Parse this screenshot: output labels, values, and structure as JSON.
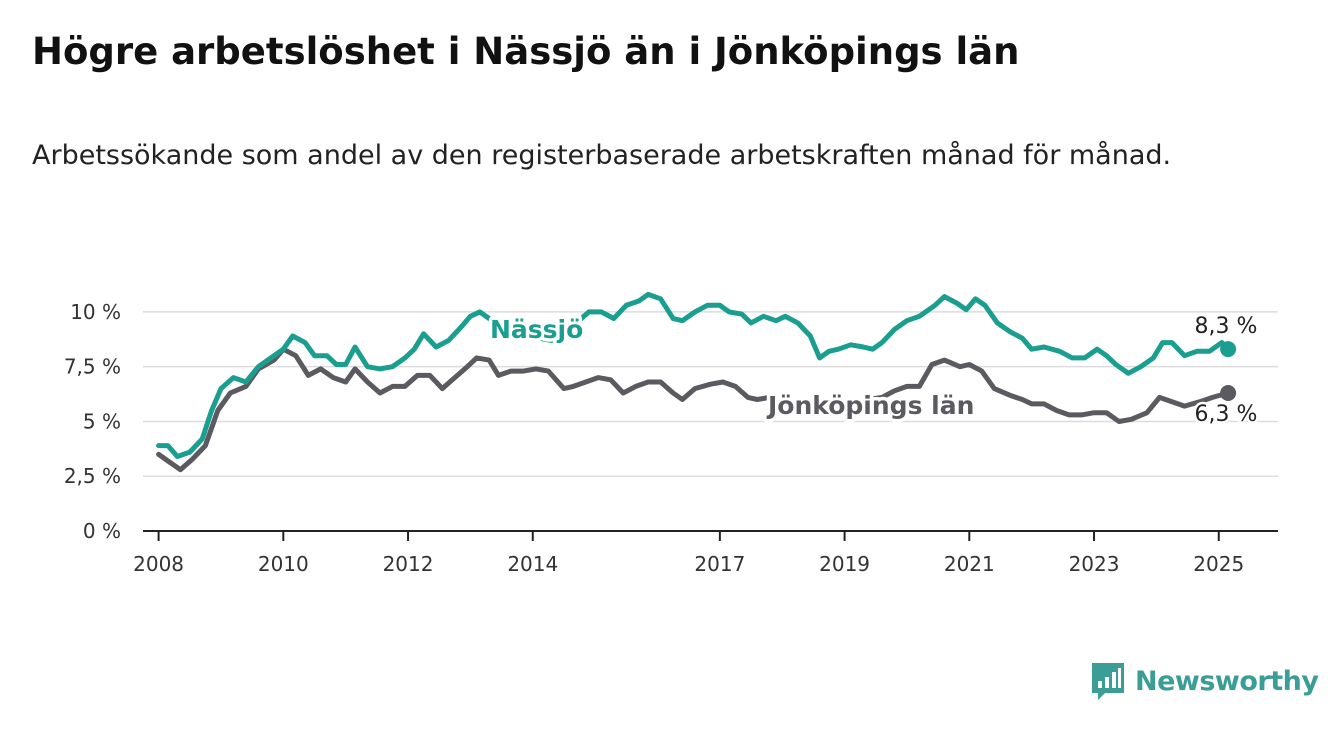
{
  "header": {
    "title": "Högre arbetslöshet i Nässjö än i Jönköpings län",
    "subtitle": "Arbetssökande som andel av den registerbaserade arbetskraften månad för månad."
  },
  "brand": {
    "name": "Newsworthy",
    "icon": "newsworthy-logo-icon",
    "color": "#3a9e96"
  },
  "chart_data": {
    "type": "line",
    "title": "Högre arbetslöshet i Nässjö än i Jönköpings län",
    "subtitle": "Arbetssökande som andel av den registerbaserade arbetskraften månad för månad.",
    "xlabel": "",
    "ylabel": "",
    "x_range": [
      2007.75,
      2025.95
    ],
    "ylim": [
      0,
      11
    ],
    "y_ticks": [
      0,
      2.5,
      5,
      7.5,
      10
    ],
    "y_tick_labels": [
      "0 %",
      "2,5 %",
      "5 %",
      "7,5 %",
      "10 %"
    ],
    "x_ticks": [
      2008,
      2010,
      2012,
      2014,
      2017,
      2019,
      2021,
      2023,
      2025
    ],
    "x_tick_labels": [
      "2008",
      "2010",
      "2012",
      "2014",
      "2017",
      "2019",
      "2021",
      "2023",
      "2025"
    ],
    "grid": "horizontal",
    "series": [
      {
        "name": "Nässjö",
        "color": "#1a9e8f",
        "end_label": "8,3 %",
        "points": [
          [
            2008.0,
            3.9
          ],
          [
            2008.15,
            3.9
          ],
          [
            2008.3,
            3.4
          ],
          [
            2008.5,
            3.6
          ],
          [
            2008.7,
            4.2
          ],
          [
            2008.85,
            5.5
          ],
          [
            2009.0,
            6.5
          ],
          [
            2009.2,
            7.0
          ],
          [
            2009.4,
            6.8
          ],
          [
            2009.6,
            7.5
          ],
          [
            2009.85,
            8.0
          ],
          [
            2010.0,
            8.3
          ],
          [
            2010.15,
            8.9
          ],
          [
            2010.35,
            8.6
          ],
          [
            2010.5,
            8.0
          ],
          [
            2010.7,
            8.0
          ],
          [
            2010.85,
            7.6
          ],
          [
            2011.0,
            7.6
          ],
          [
            2011.15,
            8.4
          ],
          [
            2011.35,
            7.5
          ],
          [
            2011.55,
            7.4
          ],
          [
            2011.75,
            7.5
          ],
          [
            2011.95,
            7.9
          ],
          [
            2012.1,
            8.3
          ],
          [
            2012.25,
            9.0
          ],
          [
            2012.45,
            8.4
          ],
          [
            2012.65,
            8.7
          ],
          [
            2012.85,
            9.3
          ],
          [
            2013.0,
            9.8
          ],
          [
            2013.15,
            10.0
          ],
          [
            2013.35,
            9.6
          ],
          [
            2013.55,
            8.9
          ],
          [
            2013.75,
            9.3
          ],
          [
            2013.9,
            9.1
          ],
          [
            2014.1,
            8.8
          ],
          [
            2014.3,
            8.7
          ],
          [
            2014.5,
            9.1
          ],
          [
            2014.7,
            9.5
          ],
          [
            2014.9,
            10.0
          ],
          [
            2015.1,
            10.0
          ],
          [
            2015.3,
            9.7
          ],
          [
            2015.5,
            10.3
          ],
          [
            2015.7,
            10.5
          ],
          [
            2015.85,
            10.8
          ],
          [
            2016.05,
            10.6
          ],
          [
            2016.25,
            9.7
          ],
          [
            2016.4,
            9.6
          ],
          [
            2016.6,
            10.0
          ],
          [
            2016.8,
            10.3
          ],
          [
            2017.0,
            10.3
          ],
          [
            2017.15,
            10.0
          ],
          [
            2017.35,
            9.9
          ],
          [
            2017.5,
            9.5
          ],
          [
            2017.7,
            9.8
          ],
          [
            2017.9,
            9.6
          ],
          [
            2018.05,
            9.8
          ],
          [
            2018.25,
            9.5
          ],
          [
            2018.45,
            8.9
          ],
          [
            2018.6,
            7.9
          ],
          [
            2018.75,
            8.2
          ],
          [
            2018.9,
            8.3
          ],
          [
            2019.1,
            8.5
          ],
          [
            2019.3,
            8.4
          ],
          [
            2019.45,
            8.3
          ],
          [
            2019.6,
            8.6
          ],
          [
            2019.8,
            9.2
          ],
          [
            2020.0,
            9.6
          ],
          [
            2020.2,
            9.8
          ],
          [
            2020.45,
            10.3
          ],
          [
            2020.6,
            10.7
          ],
          [
            2020.8,
            10.4
          ],
          [
            2020.95,
            10.1
          ],
          [
            2021.1,
            10.6
          ],
          [
            2021.25,
            10.3
          ],
          [
            2021.45,
            9.5
          ],
          [
            2021.65,
            9.1
          ],
          [
            2021.85,
            8.8
          ],
          [
            2022.0,
            8.3
          ],
          [
            2022.2,
            8.4
          ],
          [
            2022.45,
            8.2
          ],
          [
            2022.65,
            7.9
          ],
          [
            2022.85,
            7.9
          ],
          [
            2023.05,
            8.3
          ],
          [
            2023.2,
            8.0
          ],
          [
            2023.35,
            7.6
          ],
          [
            2023.55,
            7.2
          ],
          [
            2023.75,
            7.5
          ],
          [
            2023.95,
            7.9
          ],
          [
            2024.1,
            8.6
          ],
          [
            2024.25,
            8.6
          ],
          [
            2024.45,
            8.0
          ],
          [
            2024.65,
            8.2
          ],
          [
            2024.85,
            8.2
          ],
          [
            2025.05,
            8.6
          ],
          [
            2025.15,
            8.3
          ]
        ]
      },
      {
        "name": "Jönköpings län",
        "color": "#5a5a60",
        "end_label": "6,3 %",
        "points": [
          [
            2008.0,
            3.5
          ],
          [
            2008.15,
            3.2
          ],
          [
            2008.35,
            2.8
          ],
          [
            2008.55,
            3.3
          ],
          [
            2008.75,
            3.9
          ],
          [
            2008.95,
            5.5
          ],
          [
            2009.15,
            6.3
          ],
          [
            2009.4,
            6.6
          ],
          [
            2009.6,
            7.4
          ],
          [
            2009.85,
            7.8
          ],
          [
            2010.0,
            8.3
          ],
          [
            2010.2,
            8.0
          ],
          [
            2010.4,
            7.1
          ],
          [
            2010.6,
            7.4
          ],
          [
            2010.8,
            7.0
          ],
          [
            2011.0,
            6.8
          ],
          [
            2011.15,
            7.4
          ],
          [
            2011.35,
            6.8
          ],
          [
            2011.55,
            6.3
          ],
          [
            2011.75,
            6.6
          ],
          [
            2011.95,
            6.6
          ],
          [
            2012.15,
            7.1
          ],
          [
            2012.35,
            7.1
          ],
          [
            2012.55,
            6.5
          ],
          [
            2012.75,
            7.0
          ],
          [
            2012.95,
            7.5
          ],
          [
            2013.1,
            7.9
          ],
          [
            2013.3,
            7.8
          ],
          [
            2013.45,
            7.1
          ],
          [
            2013.65,
            7.3
          ],
          [
            2013.85,
            7.3
          ],
          [
            2014.05,
            7.4
          ],
          [
            2014.25,
            7.3
          ],
          [
            2014.5,
            6.5
          ],
          [
            2014.65,
            6.6
          ],
          [
            2014.85,
            6.8
          ],
          [
            2015.05,
            7.0
          ],
          [
            2015.25,
            6.9
          ],
          [
            2015.45,
            6.3
          ],
          [
            2015.65,
            6.6
          ],
          [
            2015.85,
            6.8
          ],
          [
            2016.05,
            6.8
          ],
          [
            2016.25,
            6.3
          ],
          [
            2016.4,
            6.0
          ],
          [
            2016.6,
            6.5
          ],
          [
            2016.85,
            6.7
          ],
          [
            2017.05,
            6.8
          ],
          [
            2017.25,
            6.6
          ],
          [
            2017.45,
            6.1
          ],
          [
            2017.6,
            6.0
          ],
          [
            2017.8,
            6.1
          ],
          [
            2018.0,
            5.7
          ],
          [
            2018.2,
            5.8
          ],
          [
            2018.4,
            5.6
          ],
          [
            2018.6,
            5.5
          ],
          [
            2018.8,
            5.6
          ],
          [
            2019.0,
            5.6
          ],
          [
            2019.2,
            5.8
          ],
          [
            2019.4,
            6.0
          ],
          [
            2019.6,
            6.1
          ],
          [
            2019.8,
            6.4
          ],
          [
            2020.0,
            6.6
          ],
          [
            2020.2,
            6.6
          ],
          [
            2020.4,
            7.6
          ],
          [
            2020.6,
            7.8
          ],
          [
            2020.85,
            7.5
          ],
          [
            2021.0,
            7.6
          ],
          [
            2021.2,
            7.3
          ],
          [
            2021.4,
            6.5
          ],
          [
            2021.65,
            6.2
          ],
          [
            2021.85,
            6.0
          ],
          [
            2022.0,
            5.8
          ],
          [
            2022.2,
            5.8
          ],
          [
            2022.4,
            5.5
          ],
          [
            2022.6,
            5.3
          ],
          [
            2022.8,
            5.3
          ],
          [
            2023.0,
            5.4
          ],
          [
            2023.2,
            5.4
          ],
          [
            2023.4,
            5.0
          ],
          [
            2023.6,
            5.1
          ],
          [
            2023.85,
            5.4
          ],
          [
            2024.05,
            6.1
          ],
          [
            2024.25,
            5.9
          ],
          [
            2024.45,
            5.7
          ],
          [
            2024.7,
            5.9
          ],
          [
            2024.9,
            6.1
          ],
          [
            2025.15,
            6.3
          ]
        ]
      }
    ]
  }
}
